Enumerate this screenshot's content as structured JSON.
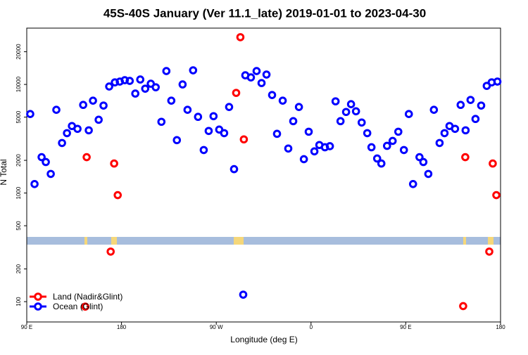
{
  "chart_data": {
    "type": "scatter",
    "title": "45S-40S January (Ver 11.1_late)   2019-01-01 to 2023-04-30",
    "x_label": "Longitude (deg E)",
    "y_label": "N Total",
    "log_scale_y": true,
    "legend_position": "bottom-left",
    "xlim": [
      90,
      540
    ],
    "ylim": [
      65,
      33000
    ],
    "xticks": [
      {
        "value": 90,
        "label": "90 E"
      },
      180,
      {
        "value": 270,
        "label": "90 W"
      },
      {
        "value": 360,
        "label": "0"
      },
      {
        "value": 450,
        "label": "90 E"
      },
      {
        "value": 540,
        "label": "180"
      }
    ],
    "yticks": [
      100,
      200,
      500,
      1000,
      2000,
      5000,
      10000,
      20000
    ],
    "series": [
      {
        "name": "Land (Nadir&Glint)",
        "color": "#ff0000",
        "x": [
          145.6,
          146.9,
          169.7,
          173.0,
          176.4,
          288.9,
          292.9,
          296.2,
          504.5,
          506.5,
          529.3,
          532.6,
          536.0
        ],
        "values": [
          90,
          2140,
          289,
          1870,
          957,
          8360,
          27230,
          3120,
          91,
          2140,
          289,
          1870,
          957
        ]
      },
      {
        "name": "Ocean (Glint)",
        "color": "#0000ff",
        "x": [
          93.3,
          97.4,
          104.1,
          108.1,
          112.8,
          118.1,
          123.5,
          128.2,
          132.9,
          138.2,
          143.6,
          148.9,
          152.9,
          158.3,
          162.9,
          168.3,
          173.7,
          178.4,
          183.1,
          187.8,
          193.1,
          197.8,
          202.5,
          207.8,
          212.5,
          217.9,
          222.6,
          227.3,
          232.6,
          238.0,
          242.7,
          248.0,
          252.7,
          258.1,
          262.8,
          267.4,
          272.8,
          277.5,
          282.2,
          286.9,
          295.6,
          297.6,
          302.9,
          308.3,
          313.0,
          317.7,
          323.0,
          327.7,
          333.1,
          338.4,
          343.1,
          348.5,
          353.2,
          357.8,
          363.2,
          367.9,
          373.2,
          377.9,
          383.3,
          388.0,
          393.3,
          398.0,
          402.7,
          408.1,
          413.4,
          417.4,
          422.8,
          426.8,
          432.2,
          437.5,
          442.9,
          448.2,
          452.9,
          456.9,
          463.0,
          466.7,
          471.4,
          476.7,
          482.1,
          486.8,
          491.5,
          496.8,
          502.1,
          506.8,
          511.5,
          516.2,
          521.6,
          526.9,
          531.6,
          537.0
        ],
        "values": [
          5340,
          1210,
          2140,
          1930,
          1500,
          5840,
          2890,
          3560,
          4140,
          3900,
          6480,
          3780,
          7090,
          4730,
          6390,
          9570,
          10450,
          10620,
          10940,
          10780,
          8240,
          11100,
          9140,
          10150,
          9420,
          4530,
          13280,
          7090,
          3070,
          10000,
          5840,
          13490,
          5030,
          2490,
          3730,
          5100,
          3840,
          3560,
          6200,
          1660,
          116,
          12140,
          11610,
          13280,
          10300,
          12330,
          7990,
          3510,
          7090,
          2570,
          4590,
          6200,
          2050,
          3670,
          2420,
          2770,
          2640,
          2700,
          6990,
          4590,
          5580,
          6580,
          5660,
          4460,
          3560,
          2640,
          2080,
          1870,
          2720,
          3020,
          3670,
          2490,
          5340,
          1210,
          2140,
          1930,
          1500,
          5840,
          2890,
          3560,
          4140,
          3900,
          6480,
          3780,
          7200,
          4810,
          6390,
          9700,
          10450,
          10620
        ]
      }
    ]
  }
}
